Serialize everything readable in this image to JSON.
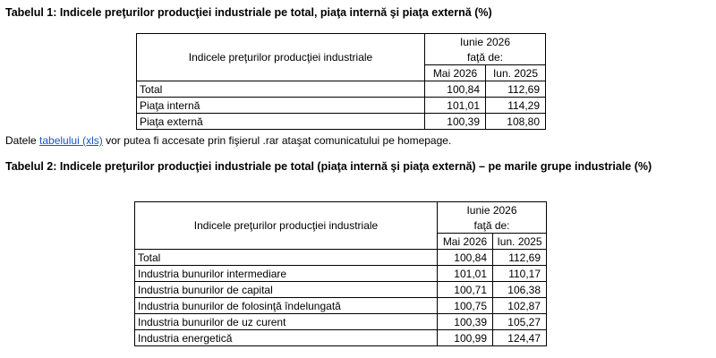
{
  "table1": {
    "title": "Tabelul 1: Indicele preţurilor producţiei industriale pe total, piaţa internă şi piaţa externă (%)",
    "header": {
      "label": "Indicele preţurilor producţiei industriale",
      "period": "Iunie 2026",
      "ref": "faţă de:",
      "col1": "Mai 2026",
      "col2": "Iun. 2025"
    },
    "rows": [
      [
        "Total",
        "100,84",
        "112,69"
      ],
      [
        "Piaţa internă",
        "101,01",
        "114,29"
      ],
      [
        "Piaţa externă",
        "100,39",
        "108,80"
      ]
    ]
  },
  "note": {
    "before": "Datele",
    "link": "tabelului (xls)",
    "after": "vor putea fi accesate prin fişierul .rar  ataşat comunicatului pe homepage."
  },
  "table2": {
    "title": "Tabelul 2: Indicele preţurilor producţiei industriale pe total (piaţa internă şi piaţa externă) – pe marile grupe industriale (%)",
    "header": {
      "label": "Indicele preţurilor producţiei industriale",
      "period": "Iunie 2026",
      "ref": "faţă de:",
      "col1": "Mai 2026",
      "col2": "Iun. 2025"
    },
    "rows": [
      [
        "Total",
        "100,84",
        "112,69"
      ],
      [
        "Industria bunurilor intermediare",
        "101,01",
        "110,17"
      ],
      [
        "Industria bunurilor de capital",
        "100,71",
        "106,38"
      ],
      [
        "Industria bunurilor de folosinţă îndelungată",
        "100,75",
        "102,87"
      ],
      [
        "Industria bunurilor de uz curent",
        "100,39",
        "105,27"
      ],
      [
        "Industria energetică",
        "100,99",
        "124,47"
      ]
    ]
  }
}
